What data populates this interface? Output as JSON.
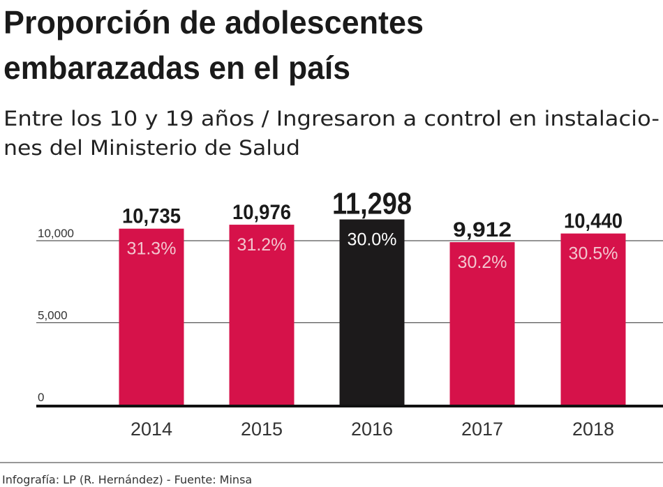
{
  "chart_data": {
    "type": "bar",
    "title": [
      "Proporción de adolescentes",
      "embarazadas en el país"
    ],
    "subtitle": [
      "Entre los 10 y 19 años / Ingresaron a control en instalacio-",
      "nes del Ministerio de Salud"
    ],
    "categories": [
      "2014",
      "2015",
      "2016",
      "2017",
      "2018"
    ],
    "values": [
      10735,
      10976,
      11298,
      9912,
      10440
    ],
    "value_labels": [
      "10,735",
      "10,976",
      "11,298",
      "9,912",
      "10,440"
    ],
    "percent_labels": [
      "31.3%",
      "31.2%",
      "30.0%",
      "30.2%",
      "30.5%"
    ],
    "highlight_index": 2,
    "yticks": [
      0,
      5000,
      10000
    ],
    "ytick_labels": [
      "0",
      "5,000",
      "10,000"
    ],
    "ylim": [
      0,
      12000
    ],
    "grid": true,
    "xlabel": "",
    "ylabel": "",
    "colors": {
      "bar": "#d6124a",
      "highlight": "#1c1a1b"
    },
    "footer": "Infografía: LP (R. Hernández) - Fuente: Minsa"
  }
}
